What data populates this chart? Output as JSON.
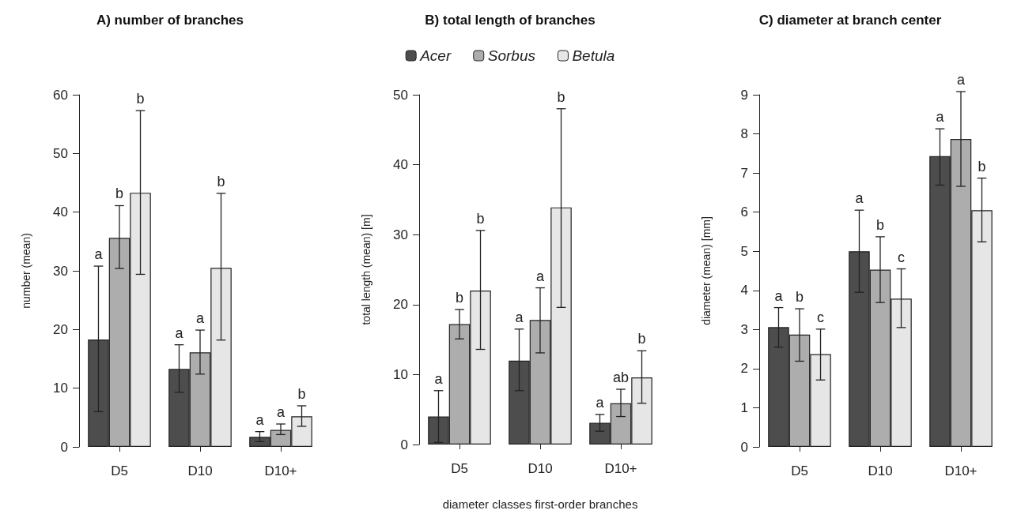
{
  "chart_data": [
    {
      "type": "bar",
      "title": "A) number of branches",
      "ylabel": "number (mean)",
      "categories": [
        "D5",
        "D10",
        "D10+"
      ],
      "ylim": [
        0,
        60
      ],
      "yticks": [
        0,
        10,
        20,
        30,
        40,
        50,
        60
      ],
      "grid": false,
      "legend": false,
      "series": [
        {
          "color": "#4d4d4d",
          "values": [
            18.3,
            13.3,
            1.7
          ],
          "errors": [
            [
              6.0,
              30.8
            ],
            [
              9.3,
              17.4
            ],
            [
              0.9,
              2.6
            ]
          ]
        },
        {
          "color": "#adadad",
          "values": [
            35.6,
            16.1,
            2.9
          ],
          "errors": [
            [
              30.4,
              41.1
            ],
            [
              12.4,
              19.9
            ],
            [
              2.1,
              3.9
            ]
          ]
        },
        {
          "color": "#e6e6e6",
          "values": [
            43.3,
            30.5,
            5.2
          ],
          "errors": [
            [
              29.4,
              57.3
            ],
            [
              18.2,
              43.2
            ],
            [
              3.5,
              7.0
            ]
          ]
        }
      ],
      "annotations": [
        "a",
        "b",
        "b",
        "a",
        "a",
        "b",
        "a",
        "a",
        "b"
      ]
    },
    {
      "type": "bar",
      "title": "B) total length of branches",
      "ylabel": "total length (mean) [m]",
      "xlabel": "diameter classes first-order branches",
      "categories": [
        "D5",
        "D10",
        "D10+"
      ],
      "ylim": [
        0,
        50
      ],
      "yticks": [
        0,
        10,
        20,
        30,
        40,
        50
      ],
      "grid": false,
      "legend": "top",
      "series": [
        {
          "name": "Acer",
          "color": "#4d4d4d",
          "values": [
            4.0,
            12.0,
            3.1
          ],
          "errors": [
            [
              0.3,
              7.7
            ],
            [
              7.7,
              16.5
            ],
            [
              1.9,
              4.3
            ]
          ]
        },
        {
          "name": "Sorbus",
          "color": "#adadad",
          "values": [
            17.2,
            17.8,
            5.9
          ],
          "errors": [
            [
              15.1,
              19.3
            ],
            [
              13.1,
              22.4
            ],
            [
              4.0,
              7.9
            ]
          ]
        },
        {
          "name": "Betula",
          "color": "#e6e6e6",
          "values": [
            22.0,
            33.9,
            9.6
          ],
          "errors": [
            [
              13.6,
              30.6
            ],
            [
              19.6,
              48.0
            ],
            [
              5.9,
              13.4
            ]
          ]
        }
      ],
      "annotations": [
        "a",
        "b",
        "b",
        "a",
        "a",
        "b",
        "a",
        "ab",
        "b"
      ]
    },
    {
      "type": "bar",
      "title": "C) diameter at branch center",
      "ylabel": "diameter (mean) [mm]",
      "categories": [
        "D5",
        "D10",
        "D10+"
      ],
      "ylim": [
        0,
        9
      ],
      "yticks": [
        0,
        1,
        2,
        3,
        4,
        5,
        6,
        7,
        8,
        9
      ],
      "grid": false,
      "legend": false,
      "series": [
        {
          "color": "#4d4d4d",
          "values": [
            3.06,
            5.0,
            7.43
          ],
          "errors": [
            [
              2.55,
              3.56
            ],
            [
              3.95,
              6.05
            ],
            [
              6.69,
              8.13
            ]
          ]
        },
        {
          "color": "#adadad",
          "values": [
            2.87,
            4.53,
            7.87
          ],
          "errors": [
            [
              2.19,
              3.53
            ],
            [
              3.69,
              5.37
            ],
            [
              6.66,
              9.08
            ]
          ]
        },
        {
          "color": "#e6e6e6",
          "values": [
            2.37,
            3.79,
            6.05
          ],
          "errors": [
            [
              1.71,
              3.01
            ],
            [
              3.05,
              4.55
            ],
            [
              5.24,
              6.87
            ]
          ]
        }
      ],
      "annotations": [
        "a",
        "b",
        "c",
        "a",
        "b",
        "c",
        "a",
        "a",
        "b"
      ]
    }
  ]
}
